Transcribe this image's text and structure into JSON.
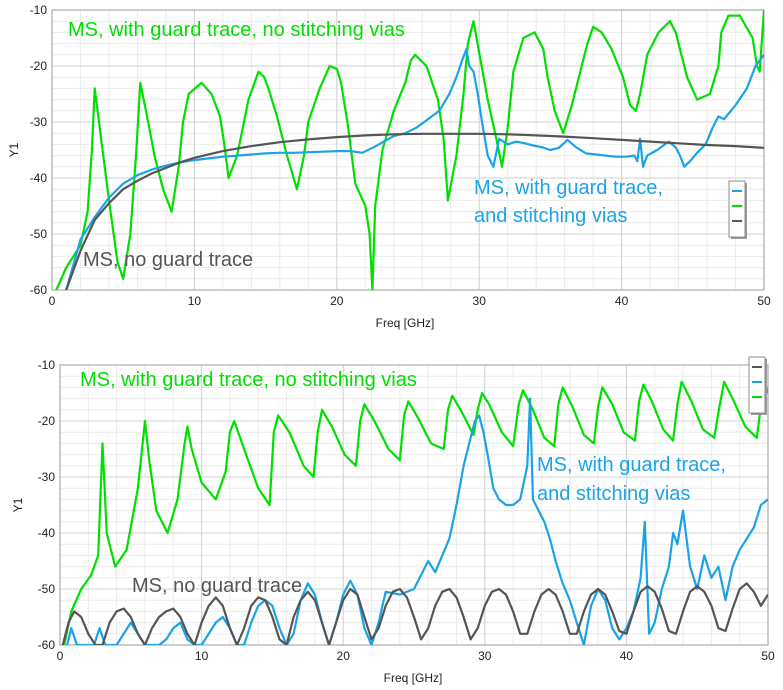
{
  "chart_data": [
    {
      "type": "line",
      "xlabel": "Freq [GHz]",
      "ylabel": "Y1",
      "xlim": [
        0,
        50
      ],
      "ylim": [
        -60,
        -10
      ],
      "xticks": [
        0,
        10,
        20,
        30,
        40,
        50
      ],
      "yticks": [
        -60,
        -50,
        -40,
        -30,
        -20,
        -10
      ],
      "grid": true,
      "legend": "right",
      "annotations": [
        {
          "text": "MS, with guard trace, no stitching vias",
          "color": "#00e000"
        },
        {
          "text": "MS, with guard trace,",
          "color": "#1aa3e6"
        },
        {
          "text": "and stitching vias",
          "color": "#1aa3e6"
        },
        {
          "text": "MS, no guard trace",
          "color": "#555555"
        }
      ],
      "series": [
        {
          "color": "#00e000",
          "x": [
            0.3,
            1.0,
            2.0,
            2.5,
            2.8,
            3.0,
            3.3,
            4.0,
            4.6,
            5.0,
            5.5,
            5.9,
            6.2,
            6.6,
            7.2,
            7.8,
            8.4,
            8.9,
            9.2,
            9.6,
            10.5,
            11.2,
            11.8,
            12.1,
            12.4,
            13.0,
            13.8,
            14.5,
            14.9,
            15.2,
            15.8,
            16.5,
            17.2,
            17.7,
            18.0,
            18.8,
            19.5,
            20.0,
            20.3,
            20.8,
            21.3,
            22.0,
            22.3,
            22.5,
            22.7,
            23.2,
            24.0,
            24.8,
            25.2,
            25.5,
            26.3,
            27.1,
            27.5,
            27.8,
            28.4,
            28.9,
            29.2,
            29.6,
            30.1,
            30.6,
            31.2,
            31.6,
            32.0,
            32.4,
            33.1,
            33.9,
            34.5,
            34.8,
            35.3,
            35.9,
            36.5,
            37.2,
            37.6,
            38.0,
            38.6,
            39.3,
            40.1,
            40.6,
            41.0,
            41.3,
            41.8,
            42.6,
            43.4,
            43.8,
            44.2,
            44.6,
            45.3,
            46.2,
            46.8,
            47.0,
            47.5,
            48.3,
            49.2,
            49.5,
            49.7,
            50.0
          ],
          "y": [
            -60,
            -56,
            -52,
            -46,
            -35,
            -24,
            -30,
            -44,
            -55,
            -58,
            -50,
            -36,
            -23,
            -28,
            -36,
            -42,
            -46,
            -38,
            -30,
            -25,
            -23,
            -25,
            -29,
            -34,
            -40,
            -36,
            -26,
            -21,
            -22,
            -24,
            -29,
            -36,
            -42,
            -36,
            -30,
            -24,
            -20,
            -20.5,
            -23,
            -31,
            -41,
            -45,
            -50,
            -60,
            -45,
            -35,
            -28,
            -23,
            -19,
            -18,
            -20,
            -26,
            -33,
            -44,
            -36,
            -25,
            -16,
            -12,
            -19,
            -26,
            -33,
            -38,
            -31,
            -21,
            -15,
            -14,
            -17,
            -22,
            -28,
            -32,
            -27,
            -20,
            -16,
            -13,
            -14,
            -17,
            -22,
            -27,
            -28,
            -25,
            -18,
            -14,
            -12,
            -14,
            -18,
            -22,
            -26,
            -25,
            -20,
            -14,
            -11,
            -11,
            -15,
            -20,
            -21,
            -10
          ]
        },
        {
          "color": "#1aa3e6",
          "x": [
            1,
            2,
            3,
            4,
            5,
            6,
            7,
            8,
            9,
            10,
            11,
            12,
            13,
            14,
            15,
            16,
            17,
            18,
            19,
            20,
            21,
            21.8,
            22.6,
            23.3,
            24.0,
            24.8,
            25.6,
            26.4,
            27.2,
            27.9,
            28.4,
            28.8,
            29.1,
            29.3,
            29.6,
            29.9,
            30.2,
            30.6,
            31.0,
            31.4,
            32.0,
            32.6,
            33.2,
            33.8,
            34.4,
            35.0,
            35.6,
            36.2,
            36.8,
            37.5,
            38.2,
            38.9,
            39.6,
            40.3,
            40.9,
            41.1,
            41.3,
            41.5,
            41.8,
            42.5,
            43.3,
            43.8,
            44.1,
            44.4,
            44.8,
            45.3,
            45.9,
            46.4,
            46.8,
            47.2,
            48.0,
            48.8,
            49.4,
            50.0
          ],
          "y": [
            -60,
            -51,
            -47,
            -43.5,
            -41,
            -39.5,
            -38.5,
            -37.8,
            -37.2,
            -36.8,
            -36.5,
            -36.2,
            -36,
            -35.8,
            -35.6,
            -35.5,
            -35.5,
            -35.4,
            -35.3,
            -35.2,
            -35.2,
            -35.5,
            -34.5,
            -33.5,
            -32.5,
            -32,
            -31,
            -29.5,
            -28,
            -25,
            -22,
            -19,
            -17,
            -20,
            -21,
            -25,
            -30,
            -36,
            -38,
            -33,
            -34,
            -33.5,
            -33.8,
            -34.2,
            -34.5,
            -35,
            -34.6,
            -33.2,
            -34.5,
            -35.6,
            -35.8,
            -36,
            -36.2,
            -36.2,
            -36,
            -37,
            -33,
            -38,
            -36,
            -35,
            -33.5,
            -34.5,
            -36,
            -38,
            -37,
            -35.5,
            -34,
            -31,
            -29,
            -29.5,
            -27,
            -24,
            -20,
            -18
          ]
        },
        {
          "color": "#555555",
          "x": [
            1,
            2,
            3,
            4,
            5,
            6,
            7,
            8,
            9,
            10,
            12,
            14,
            16,
            18,
            20,
            22,
            24,
            26,
            28,
            30,
            32,
            34,
            36,
            38,
            40,
            42,
            44,
            46,
            48,
            50
          ],
          "y": [
            -60,
            -53,
            -47.5,
            -44.5,
            -42,
            -40.5,
            -39.2,
            -38.2,
            -37.2,
            -36.4,
            -35.2,
            -34.3,
            -33.6,
            -33.1,
            -32.7,
            -32.4,
            -32.2,
            -32.1,
            -32.1,
            -32.1,
            -32.2,
            -32.4,
            -32.6,
            -32.9,
            -33.2,
            -33.5,
            -33.8,
            -34.1,
            -34.3,
            -34.6
          ]
        }
      ]
    },
    {
      "type": "line",
      "xlabel": "Freq [GHz]",
      "ylabel": "Y1",
      "xlim": [
        0,
        50
      ],
      "ylim": [
        -60,
        -10
      ],
      "xticks": [
        0,
        10,
        20,
        30,
        40,
        50
      ],
      "yticks": [
        -60,
        -50,
        -40,
        -30,
        -20,
        -10
      ],
      "grid": true,
      "legend": "top-right",
      "annotations": [
        {
          "text": "MS, with guard trace, no stitching vias",
          "color": "#00e000"
        },
        {
          "text": "MS, with guard trace,",
          "color": "#1aa3e6"
        },
        {
          "text": "and stitching vias",
          "color": "#1aa3e6"
        },
        {
          "text": "MS, no guard trace",
          "color": "#555555"
        }
      ],
      "series": [
        {
          "color": "#00e000",
          "x": [
            0.3,
            0.8,
            1.5,
            2.2,
            2.7,
            3.0,
            3.3,
            3.9,
            4.7,
            5.5,
            6.0,
            6.3,
            6.8,
            7.6,
            8.3,
            8.8,
            9.0,
            9.3,
            10.0,
            11.0,
            11.7,
            12.0,
            12.3,
            13.0,
            14.0,
            14.8,
            15.1,
            15.4,
            16.2,
            17.2,
            17.9,
            18.2,
            18.5,
            19.2,
            20.1,
            20.9,
            21.2,
            21.5,
            22.2,
            23.2,
            24.0,
            24.3,
            24.6,
            25.3,
            26.2,
            27.1,
            27.4,
            27.7,
            28.4,
            29.2,
            29.5,
            29.8,
            30.3,
            31.2,
            32.0,
            32.4,
            32.7,
            33.4,
            34.2,
            34.9,
            35.2,
            35.5,
            36.2,
            37.0,
            37.7,
            38.0,
            38.3,
            39.0,
            39.8,
            40.6,
            40.9,
            41.2,
            41.8,
            42.6,
            43.3,
            43.6,
            43.9,
            44.6,
            45.4,
            46.2,
            46.6,
            46.9,
            47.5,
            48.4,
            49.2,
            49.5,
            49.8,
            50.0
          ],
          "y": [
            -60,
            -54,
            -50,
            -47.5,
            -44,
            -24,
            -40,
            -46,
            -43,
            -32,
            -20,
            -27,
            -36,
            -40,
            -34,
            -24,
            -21,
            -25,
            -31,
            -34,
            -29,
            -22,
            -20,
            -25,
            -32,
            -35,
            -22,
            -19,
            -22,
            -28,
            -30,
            -22,
            -18,
            -21,
            -26,
            -28,
            -20,
            -17,
            -20,
            -25,
            -27,
            -19,
            -16.5,
            -19.5,
            -24,
            -25,
            -18,
            -15.5,
            -18.5,
            -22.5,
            -18,
            -15,
            -17,
            -22,
            -24.5,
            -17,
            -14.5,
            -18,
            -23,
            -24.5,
            -17,
            -14,
            -17.5,
            -22.5,
            -24,
            -17.5,
            -14,
            -17,
            -22,
            -23.5,
            -16.5,
            -13.5,
            -16.5,
            -21.5,
            -23.5,
            -17,
            -13,
            -16.5,
            -21.5,
            -23,
            -17,
            -13,
            -16,
            -21,
            -23,
            -17.5,
            -13.5,
            -15
          ]
        },
        {
          "color": "#1aa3e6",
          "x": [
            0.5,
            0.8,
            1.2,
            1.6,
            2.0,
            2.4,
            2.8,
            3.2,
            3.6,
            4.0,
            4.5,
            5.0,
            5.5,
            6.0,
            6.5,
            7.0,
            7.5,
            8.0,
            8.5,
            9.0,
            9.5,
            10.0,
            10.5,
            11.0,
            11.5,
            12.0,
            12.5,
            13.0,
            13.5,
            14.0,
            14.5,
            15.0,
            15.5,
            16.0,
            16.5,
            17.0,
            17.5,
            18.0,
            18.5,
            19.0,
            19.5,
            20.0,
            20.5,
            21.0,
            21.5,
            22.0,
            22.5,
            23.0,
            24.0,
            25.0,
            26.0,
            26.5,
            27.0,
            27.5,
            28.0,
            28.5,
            29.0,
            29.3,
            29.6,
            29.9,
            30.2,
            30.6,
            31.0,
            31.5,
            32.0,
            32.5,
            33.0,
            33.2,
            33.4,
            33.8,
            34.2,
            34.6,
            35.0,
            35.5,
            36.0,
            36.5,
            37.0,
            37.5,
            38.0,
            38.5,
            39.0,
            39.5,
            40.0,
            40.5,
            41.0,
            41.3,
            41.6,
            42.0,
            42.5,
            43.0,
            43.3,
            43.6,
            44.0,
            44.5,
            45.0,
            45.5,
            46.0,
            46.5,
            47.0,
            47.5,
            48.0,
            48.5,
            49.0,
            49.5,
            50.0
          ],
          "y": [
            -60,
            -57,
            -60,
            -60,
            -60,
            -60,
            -57,
            -60,
            -60,
            -60,
            -58,
            -56,
            -58,
            -60,
            -60,
            -60,
            -59,
            -57,
            -56,
            -59,
            -60,
            -60,
            -58,
            -56,
            -55,
            -57,
            -60,
            -60,
            -56,
            -53,
            -52,
            -53,
            -57,
            -60,
            -58,
            -52,
            -49,
            -51,
            -56,
            -60,
            -56,
            -51,
            -48.5,
            -51,
            -57,
            -60,
            -56,
            -50.5,
            -51,
            -50,
            -45,
            -47,
            -44,
            -41,
            -35,
            -28,
            -23,
            -20,
            -19,
            -22,
            -26,
            -32,
            -34,
            -35,
            -35,
            -34,
            -28,
            -16,
            -34,
            -36,
            -38,
            -41,
            -45,
            -49,
            -52,
            -56,
            -60,
            -53,
            -50,
            -52,
            -57,
            -59,
            -57,
            -54,
            -48,
            -38,
            -58,
            -56,
            -50,
            -46,
            -40,
            -42,
            -36,
            -46,
            -50,
            -44,
            -48,
            -46,
            -52,
            -46,
            -43,
            -41,
            -39,
            -35,
            -34
          ]
        },
        {
          "color": "#555555",
          "x": [
            0.2,
            0.6,
            1.0,
            1.5,
            2.0,
            2.5,
            3.0,
            3.5,
            4.0,
            4.5,
            5.0,
            5.5,
            6.0,
            6.5,
            7.0,
            7.5,
            8.0,
            8.5,
            9.0,
            9.5,
            10.0,
            10.5,
            11.0,
            11.5,
            12.0,
            12.5,
            13.0,
            13.5,
            14.0,
            14.5,
            15.0,
            15.5,
            16.0,
            16.5,
            17.0,
            17.5,
            18.0,
            18.5,
            19.0,
            19.5,
            20.0,
            20.5,
            21.0,
            21.5,
            22.0,
            22.5,
            23.0,
            23.5,
            24.0,
            24.5,
            25.0,
            25.5,
            26.0,
            26.5,
            27.0,
            27.5,
            28.0,
            28.5,
            29.0,
            29.5,
            30.0,
            30.5,
            31.0,
            31.5,
            32.0,
            32.5,
            33.0,
            33.5,
            34.0,
            34.5,
            35.0,
            35.5,
            36.0,
            36.5,
            37.0,
            37.5,
            38.0,
            38.5,
            39.0,
            39.5,
            40.0,
            40.5,
            41.0,
            41.5,
            42.0,
            42.5,
            43.0,
            43.5,
            44.0,
            44.5,
            45.0,
            45.5,
            46.0,
            46.5,
            47.0,
            47.5,
            48.0,
            48.5,
            49.0,
            49.5,
            50.0
          ],
          "y": [
            -60,
            -56,
            -54,
            -55,
            -58,
            -60,
            -60,
            -56,
            -54,
            -53.5,
            -55,
            -58,
            -60,
            -57,
            -55,
            -54,
            -53.5,
            -55,
            -58,
            -60,
            -56,
            -53,
            -51.5,
            -53,
            -57,
            -60,
            -57,
            -53,
            -51.5,
            -52,
            -55,
            -59,
            -60,
            -55,
            -52,
            -50.5,
            -52,
            -56,
            -60,
            -56,
            -52,
            -50,
            -51,
            -55,
            -59,
            -57,
            -53,
            -50.5,
            -50,
            -51.5,
            -55,
            -59,
            -57,
            -53,
            -50.5,
            -50,
            -51.5,
            -55,
            -59,
            -57,
            -53,
            -50.5,
            -50,
            -51,
            -54,
            -58,
            -58,
            -54,
            -51,
            -50,
            -51,
            -54,
            -58,
            -58,
            -54,
            -51,
            -50,
            -51,
            -54,
            -57.5,
            -58,
            -54,
            -50.5,
            -49.5,
            -50.5,
            -53.5,
            -57.5,
            -58,
            -54,
            -50.5,
            -49.5,
            -50.5,
            -53,
            -57,
            -57.5,
            -53.5,
            -50,
            -49,
            -50.5,
            -53,
            -51
          ]
        }
      ]
    }
  ]
}
